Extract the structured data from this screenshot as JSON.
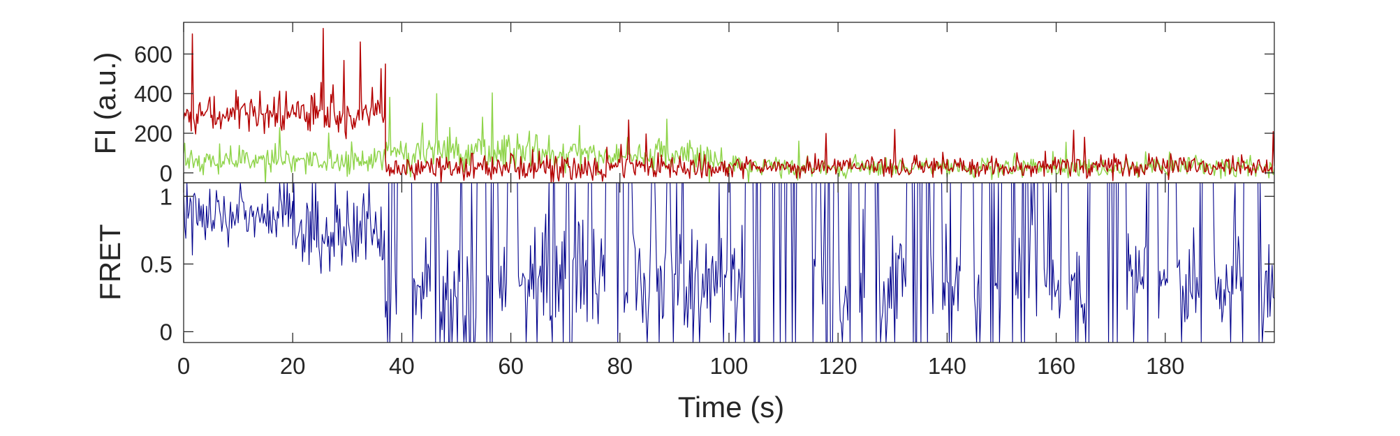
{
  "chart_data": [
    {
      "type": "line",
      "name": "intensity-panel",
      "title": "",
      "xlabel": "",
      "ylabel": "FI (a.u.)",
      "xlim": [
        0,
        200
      ],
      "ylim": [
        -50,
        760
      ],
      "yticks": [
        0,
        200,
        400,
        600
      ],
      "grid": false,
      "legend": "none",
      "dt": 0.2,
      "series": [
        {
          "color": "#8fd44a",
          "segments": [
            {
              "t0": 0,
              "t1": 37,
              "level": 60,
              "noise": 35,
              "spikes": 3
            },
            {
              "t0": 37,
              "t1": 65,
              "level": 110,
              "noise": 42,
              "spikes": 6
            },
            {
              "t0": 65,
              "t1": 98,
              "level": 85,
              "noise": 40,
              "spikes": 5
            },
            {
              "t0": 98,
              "t1": 200,
              "level": 28,
              "noise": 25,
              "spikes": 7
            }
          ]
        },
        {
          "color": "#b40000",
          "segments": [
            {
              "t0": 0,
              "t1": 37,
              "level": 300,
              "noise": 55,
              "spikes": 5
            },
            {
              "t0": 37,
              "t1": 98,
              "level": 25,
              "noise": 32,
              "spikes": 4
            },
            {
              "t0": 98,
              "t1": 200,
              "level": 32,
              "noise": 27,
              "spikes": 6
            }
          ]
        }
      ]
    },
    {
      "type": "line",
      "name": "fret-panel",
      "title": "",
      "xlabel": "Time (s)",
      "ylabel": "FRET",
      "xlim": [
        0,
        200
      ],
      "xticks": [
        0,
        20,
        40,
        60,
        80,
        100,
        120,
        140,
        160,
        180
      ],
      "ylim": [
        -0.08,
        1.1
      ],
      "yticks": [
        0,
        0.5,
        1
      ],
      "ytick_labels": [
        "0",
        "0.5",
        "1"
      ],
      "grid": false,
      "legend": "none",
      "dt": 0.2,
      "series": [
        {
          "color": "#00008b",
          "segments": [
            {
              "t0": 0,
              "t1": 20,
              "level": 0.85,
              "noise": 0.09,
              "mode": "high"
            },
            {
              "t0": 20,
              "t1": 37,
              "level": 0.72,
              "noise": 0.14,
              "mode": "high"
            },
            {
              "t0": 37,
              "t1": 200,
              "level": 0.3,
              "noise": 0.3,
              "mode": "switching"
            }
          ]
        }
      ]
    }
  ]
}
